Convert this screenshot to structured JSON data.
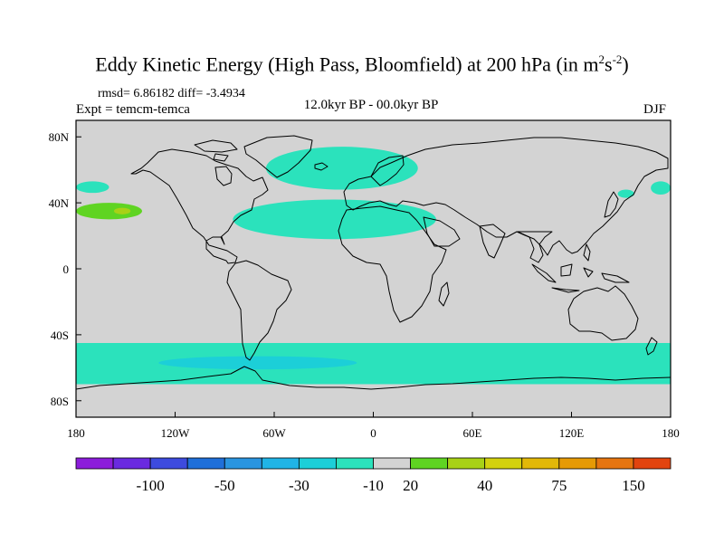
{
  "title_main": "Eddy Kinetic Energy (High Pass, Bloomfield) at 200 hPa (in m",
  "title_sup1": "2",
  "title_mid": "s",
  "title_sup2": "-2",
  "title_end": ")",
  "stats": "rmsd= 6.86182  diff= -3.4934",
  "experiment": "Expt = temcm-temca",
  "period": "12.0kyr BP - 00.0kyr BP",
  "season": "DJF",
  "chart_data": {
    "type": "heatmap",
    "projection": "cylindrical-equidistant",
    "variable": "Eddy kinetic energy difference (high pass) at 200 hPa",
    "units": "m^2 s^-2",
    "xlim": [
      -180,
      180
    ],
    "ylim": [
      -90,
      90
    ],
    "x_ticks": [
      -180,
      -120,
      -60,
      0,
      60,
      120,
      180
    ],
    "x_tick_labels": [
      "180",
      "120W",
      "60W",
      "0",
      "60E",
      "120E",
      "180"
    ],
    "y_ticks": [
      80,
      40,
      0,
      -40,
      -80
    ],
    "y_tick_labels": [
      "80N",
      "40N",
      "0",
      "40S",
      "80S"
    ],
    "background_color": "#d3d3d3",
    "colorbar": {
      "colors": [
        "#8c1ddb",
        "#6a2ae0",
        "#3d4bde",
        "#1f6fd9",
        "#2a95e0",
        "#20b4e6",
        "#1ccfd8",
        "#2be2bc",
        "#d3d3d3",
        "#5fd422",
        "#a8d116",
        "#d3d10e",
        "#e2b808",
        "#e69a06",
        "#e67510",
        "#e2440f"
      ],
      "labels": [
        {
          "text": "-100",
          "after_box": 2
        },
        {
          "text": "-50",
          "after_box": 4
        },
        {
          "text": "-30",
          "after_box": 6
        },
        {
          "text": "-10",
          "after_box": 8
        },
        {
          "text": "20",
          "after_box": 9
        },
        {
          "text": "40",
          "after_box": 11
        },
        {
          "text": "75",
          "after_box": 13
        },
        {
          "text": "150",
          "after_box": 15
        }
      ]
    },
    "anomaly_regions": [
      {
        "name": "N Pacific west band",
        "lon": [
          -180,
          -160
        ],
        "lat": [
          46,
          53
        ],
        "class": "-10",
        "color": "#2be2bc"
      },
      {
        "name": "N Pacific positive center",
        "lon": [
          -180,
          -140
        ],
        "lat": [
          30,
          40
        ],
        "class": "20",
        "color": "#5fd422"
      },
      {
        "name": "N Pacific positive core",
        "lon": [
          -157,
          -147
        ],
        "lat": [
          33,
          37
        ],
        "class": "40",
        "color": "#a8d116"
      },
      {
        "name": "N Atlantic high-latitude band",
        "lon": [
          -65,
          27
        ],
        "lat": [
          48,
          74
        ],
        "class": "-10",
        "color": "#2be2bc"
      },
      {
        "name": "N Atlantic subtropical jet band",
        "lon": [
          -85,
          38
        ],
        "lat": [
          18,
          42
        ],
        "class": "-10",
        "color": "#2be2bc"
      },
      {
        "name": "NE Asia patch",
        "lon": [
          148,
          158
        ],
        "lat": [
          43,
          48
        ],
        "class": "-10",
        "color": "#2be2bc"
      },
      {
        "name": "NE Pacific edge",
        "lon": [
          168,
          180
        ],
        "lat": [
          45,
          53
        ],
        "class": "-10",
        "color": "#2be2bc"
      },
      {
        "name": "Southern Ocean band",
        "lon": [
          -180,
          180
        ],
        "lat": [
          -70,
          -45
        ],
        "class": "-10",
        "color": "#2be2bc"
      },
      {
        "name": "Southern Ocean core",
        "lon": [
          -130,
          -10
        ],
        "lat": [
          -61,
          -53
        ],
        "class": "-30",
        "color": "#1ccfd8"
      }
    ]
  }
}
